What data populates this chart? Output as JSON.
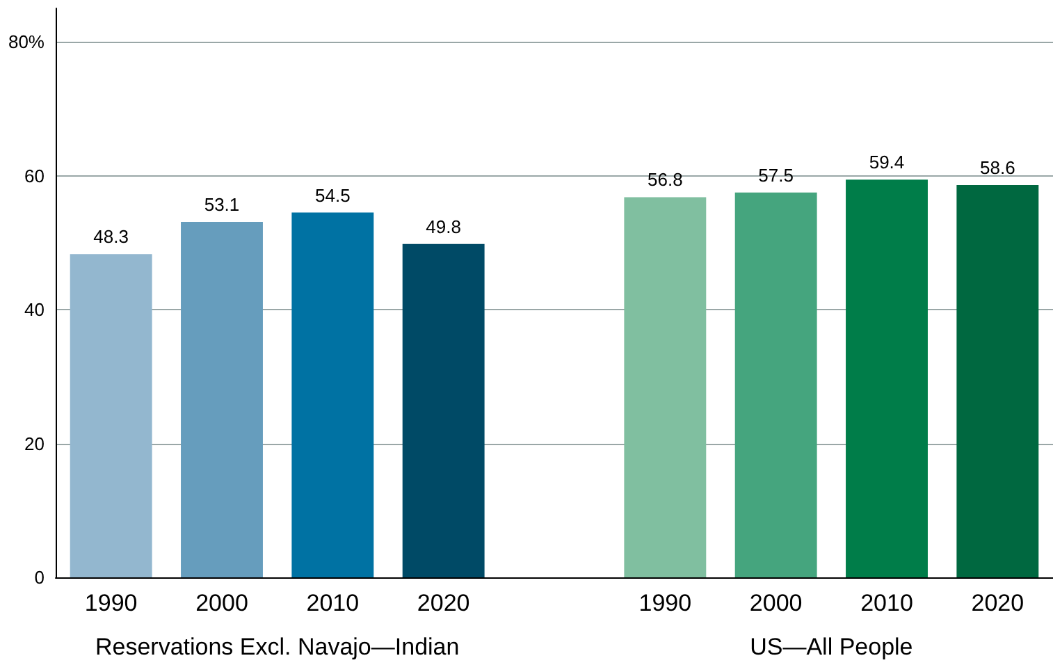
{
  "chart_data": {
    "type": "bar",
    "categories": [
      "1990",
      "2000",
      "2010",
      "2020",
      null,
      "1990",
      "2000",
      "2010",
      "2020"
    ],
    "values": [
      48.3,
      53.1,
      54.5,
      49.8,
      null,
      56.8,
      57.5,
      59.4,
      58.6
    ],
    "colors": [
      "#93b7cf",
      "#669dbd",
      "#0072a3",
      "#004a66",
      "#ffffff",
      "#80bfa0",
      "#45a57e",
      "#007d49",
      "#006840"
    ],
    "ylim": [
      0,
      85
    ],
    "yticks": [
      0,
      20,
      40,
      60,
      {
        "value": 80,
        "label": "80%"
      }
    ],
    "grid": "y",
    "data_labels": true,
    "annotations": [
      "Reservations Excl. Navajo—Indian",
      "US—All People"
    ]
  }
}
